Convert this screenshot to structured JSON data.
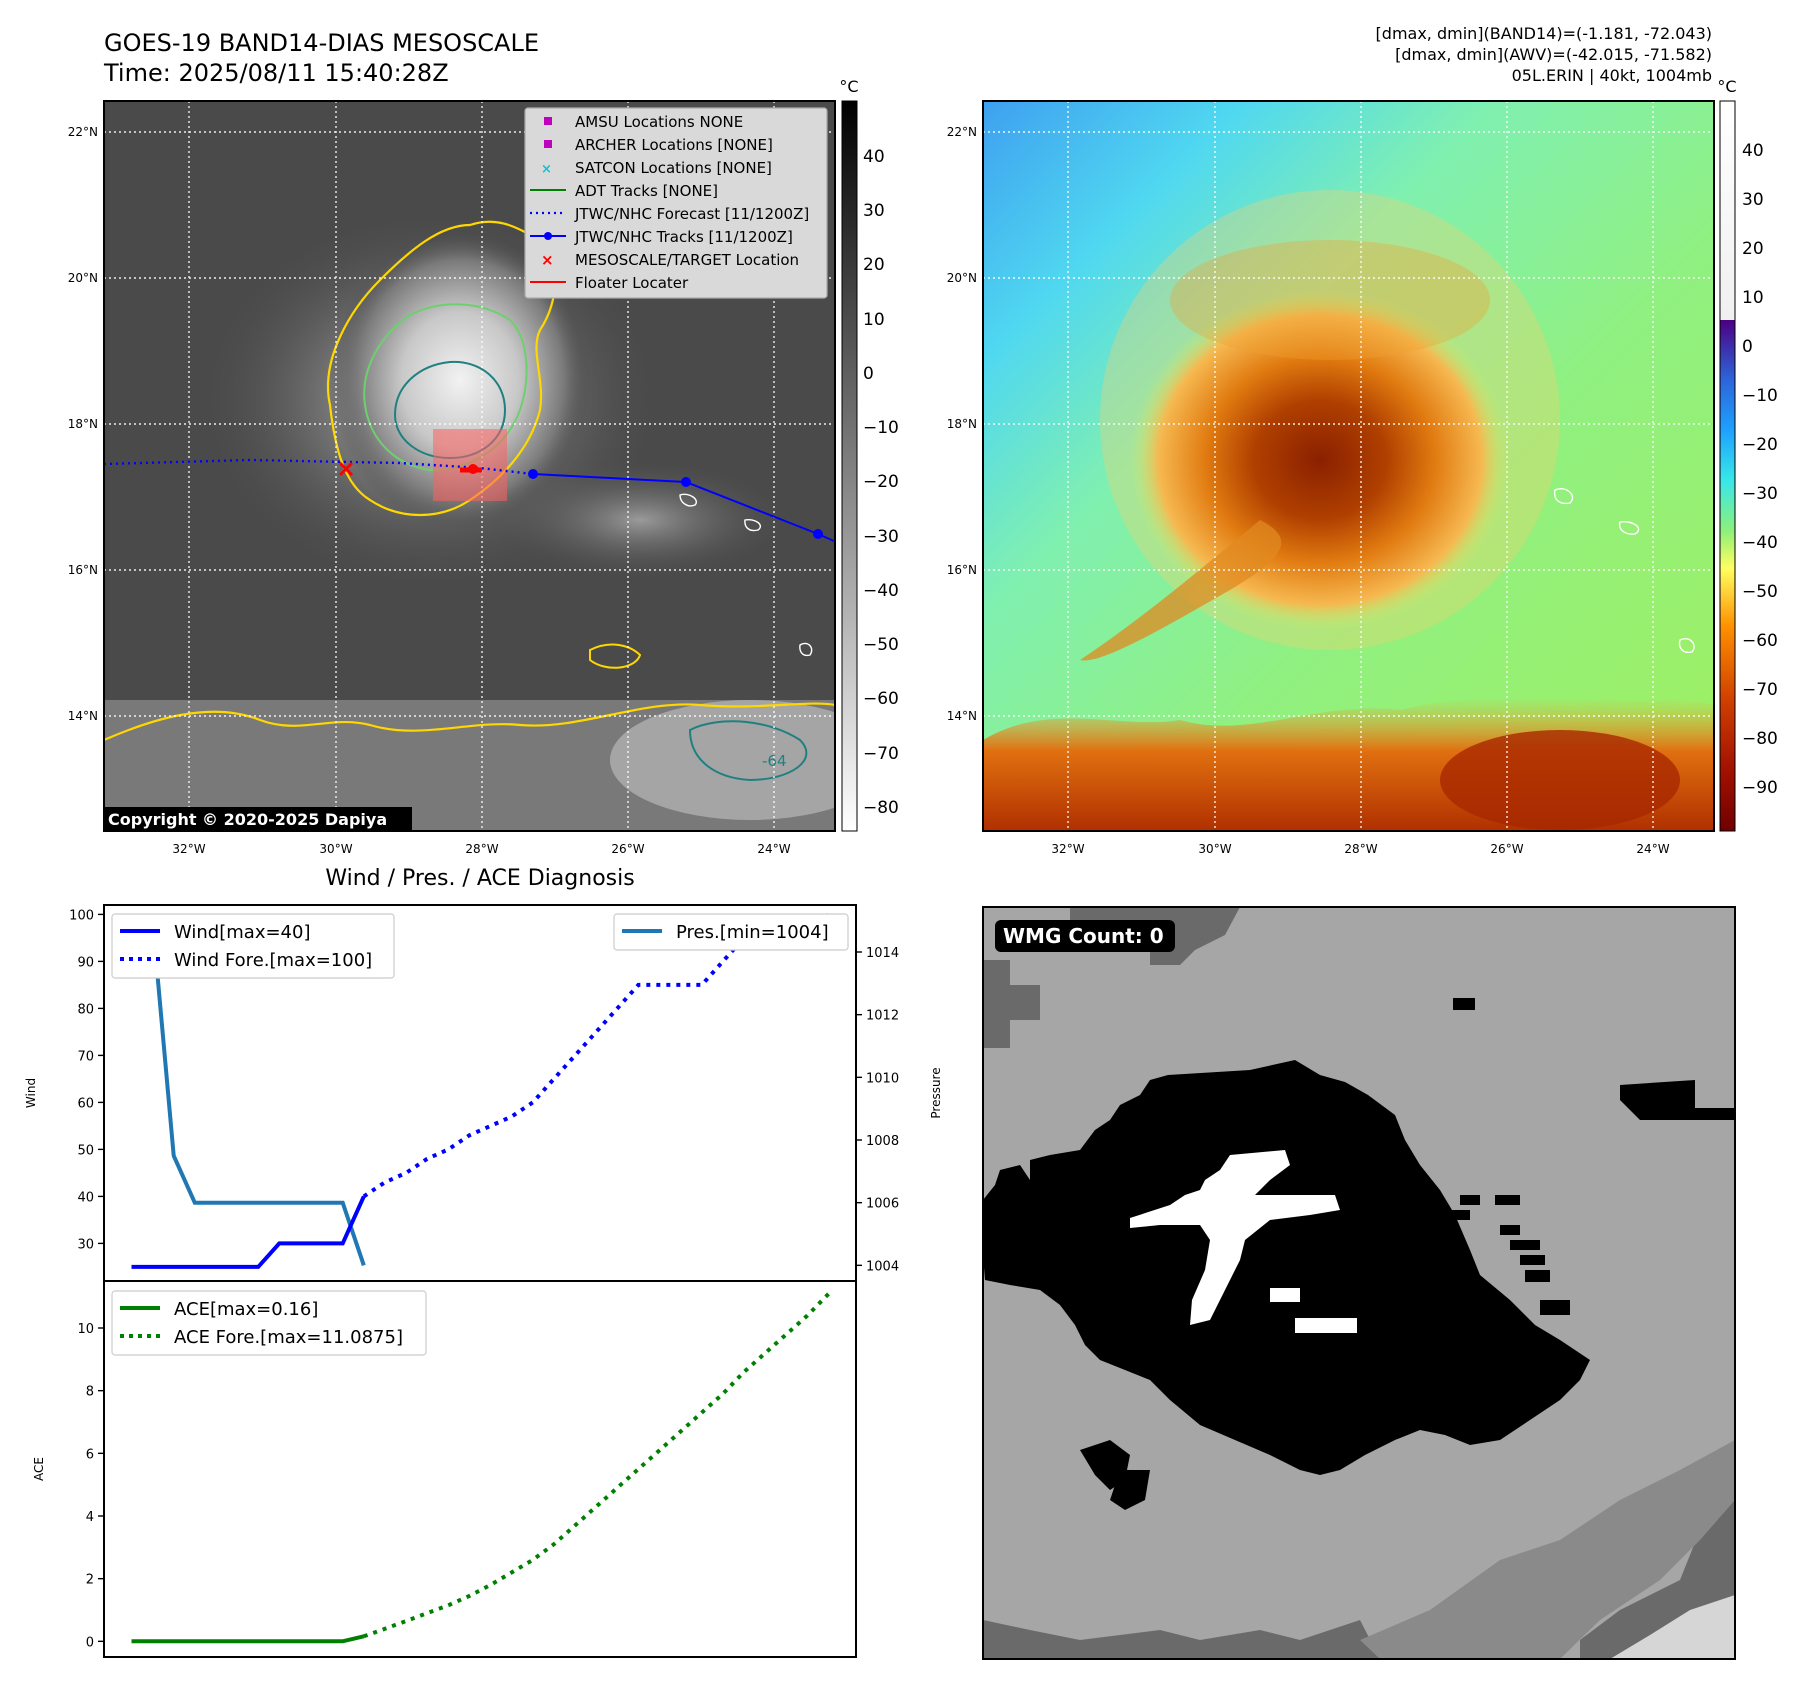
{
  "header": {
    "title": "GOES-19 BAND14-DIAS MESOSCALE",
    "time": "Time: 2025/08/11 15:40:28Z",
    "stat1": "[dmax, dmin](BAND14)=(-1.181, -72.043)",
    "stat2": "[dmax, dmin](AWV)=(-42.015, -71.582)",
    "storm": "05L.ERIN | 40kt, 1004mb"
  },
  "map": {
    "lat_labels": [
      "22°N",
      "20°N",
      "18°N",
      "16°N",
      "14°N"
    ],
    "lon_labels": [
      "32°W",
      "30°W",
      "28°W",
      "26°W",
      "24°W"
    ],
    "copyright": "Copyright © 2020-2025 Dapiya",
    "legend": [
      {
        "label": "AMSU Locations NONE",
        "marker": "square",
        "color": "#bf00bf"
      },
      {
        "label": "ARCHER Locations [NONE]",
        "marker": "square",
        "color": "#bf00bf"
      },
      {
        "label": "SATCON Locations [NONE]",
        "marker": "x",
        "color": "#17becf"
      },
      {
        "label": "ADT Tracks [NONE]",
        "marker": "line",
        "color": "#008000"
      },
      {
        "label": "JTWC/NHC Forecast [11/1200Z]",
        "marker": "dotted",
        "color": "#0000ff"
      },
      {
        "label": "JTWC/NHC Tracks [11/1200Z]",
        "marker": "line-dot",
        "color": "#0000ff"
      },
      {
        "label": "MESOSCALE/TARGET Location",
        "marker": "x",
        "color": "#ff0000"
      },
      {
        "label": "Floater Locater",
        "marker": "line",
        "color": "#ff0000"
      }
    ],
    "contour_label": "-64"
  },
  "colorbars": {
    "unit": "°C",
    "gray_ticks": [
      "40",
      "30",
      "20",
      "10",
      "0",
      "−10",
      "−20",
      "−30",
      "−40",
      "−50",
      "−60",
      "−70",
      "−80"
    ],
    "color_ticks": [
      "40",
      "30",
      "20",
      "10",
      "0",
      "−10",
      "−20",
      "−30",
      "−40",
      "−50",
      "−60",
      "−70",
      "−80",
      "−90"
    ]
  },
  "diag": {
    "title": "Wind / Pres. / ACE Diagnosis",
    "wind_ylabel": "Wind",
    "pres_ylabel": "Pressure",
    "ace_ylabel": "ACE",
    "wind_ticks": [
      "100",
      "90",
      "80",
      "70",
      "60",
      "50",
      "40",
      "30"
    ],
    "pres_ticks": [
      "1014",
      "1012",
      "1010",
      "1008",
      "1006",
      "1004"
    ],
    "ace_ticks": [
      "10",
      "8",
      "6",
      "4",
      "2",
      "0"
    ],
    "legend_wind": "Wind[max=40]",
    "legend_wind_fore": "Wind Fore.[max=100]",
    "legend_pres": "Pres.[min=1004]",
    "legend_ace": "ACE[max=0.16]",
    "legend_ace_fore": "ACE Fore.[max=11.0875]"
  },
  "wmg": {
    "label": "WMG Count: 0"
  },
  "colors": {
    "wind": "#0000ff",
    "pressure": "#1f77b4",
    "ace": "#008000",
    "track": "#0000ff",
    "target": "#ff0000"
  },
  "chart_data": [
    {
      "type": "line",
      "title": "Wind / Pres. / ACE Diagnosis",
      "ylabel": "Wind",
      "ylim": [
        22,
        102
      ],
      "series": [
        {
          "name": "Wind[max=40]",
          "x": [
            0,
            1,
            2,
            3,
            4,
            5,
            6,
            7,
            8,
            9,
            10,
            11
          ],
          "values": [
            25,
            25,
            25,
            25,
            25,
            25,
            25,
            30,
            30,
            30,
            30,
            40
          ]
        },
        {
          "name": "Wind Fore.[max=100]",
          "x": [
            11,
            12,
            13,
            14,
            15,
            16,
            17,
            18,
            19,
            20,
            21,
            22,
            23,
            24,
            25,
            26,
            27,
            28,
            29,
            30,
            31,
            32,
            33
          ],
          "values": [
            40,
            43,
            45,
            48,
            50,
            53,
            55,
            57,
            60,
            65,
            70,
            75,
            80,
            85,
            85,
            85,
            85,
            90,
            95,
            95,
            95,
            95,
            100
          ]
        }
      ]
    },
    {
      "type": "line",
      "ylabel": "Pressure",
      "ylim": [
        1003.5,
        1015.5
      ],
      "series": [
        {
          "name": "Pres.[min=1004]",
          "x": [
            0,
            1,
            2,
            3,
            4,
            5,
            6,
            7,
            8,
            9,
            10,
            11
          ],
          "values": [
            1015,
            1015,
            1007.5,
            1006,
            1006,
            1006,
            1006,
            1006,
            1006,
            1006,
            1006,
            1004
          ]
        }
      ]
    },
    {
      "type": "line",
      "ylabel": "ACE",
      "ylim": [
        -0.5,
        11.5
      ],
      "series": [
        {
          "name": "ACE[max=0.16]",
          "x": [
            0,
            1,
            2,
            3,
            4,
            5,
            6,
            7,
            8,
            9,
            10,
            11
          ],
          "values": [
            0,
            0,
            0,
            0,
            0,
            0,
            0,
            0,
            0,
            0,
            0,
            0.16
          ]
        },
        {
          "name": "ACE Fore.[max=11.0875]",
          "x": [
            11,
            12,
            13,
            14,
            15,
            16,
            17,
            18,
            19,
            20,
            21,
            22,
            23,
            24,
            25,
            26,
            27,
            28,
            29,
            30,
            31,
            32,
            33
          ],
          "values": [
            0.16,
            0.4,
            0.65,
            0.9,
            1.15,
            1.45,
            1.8,
            2.2,
            2.6,
            3.1,
            3.7,
            4.3,
            4.9,
            5.5,
            6.1,
            6.7,
            7.3,
            7.9,
            8.6,
            9.2,
            9.8,
            10.4,
            11.0875
          ]
        }
      ]
    }
  ]
}
